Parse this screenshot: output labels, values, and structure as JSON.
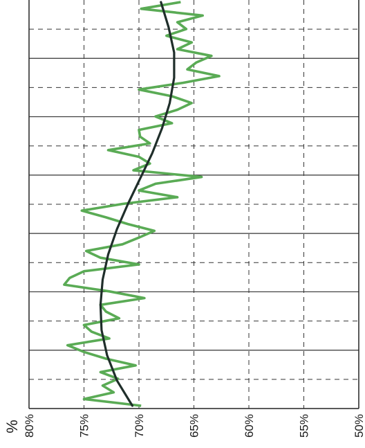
{
  "chart_data": {
    "type": "line",
    "orientation": "vertical-value-axis-bottom",
    "title": "",
    "value_axis": {
      "unit": "%",
      "range": [
        80,
        50
      ],
      "ticks": [
        80,
        75,
        70,
        65,
        60,
        55,
        50
      ],
      "tick_labels": [
        "80%",
        "75%",
        "70%",
        "65%",
        "60%",
        "55%",
        "50%"
      ],
      "reversed": true
    },
    "category_axis": {
      "labels": [],
      "count": 7
    },
    "grid": true,
    "colors": {
      "series": "#5aab55",
      "trend": "#1f2e2a",
      "grid": "#333333"
    },
    "series": [
      {
        "role": "data",
        "values": [
          69.8,
          75.0,
          72.3,
          73.3,
          71.9,
          73.5,
          70.3,
          73.0,
          75.0,
          76.5,
          72.7,
          74.3,
          75.0,
          71.8,
          73.0,
          73.5,
          69.5,
          72.7,
          76.8,
          76.3,
          75.0,
          70.0,
          73.5,
          74.8,
          71.5,
          70.0,
          68.6,
          71.0,
          73.0,
          75.2,
          71.5,
          66.5,
          70.0,
          68.5,
          64.3,
          70.5,
          69.0,
          70.0,
          72.8,
          69.0,
          69.9,
          70.0,
          67.0,
          68.5,
          66.5,
          65.2,
          67.0,
          70.0,
          66.0,
          62.7,
          65.6,
          64.8,
          63.4,
          66.5,
          65.2,
          67.5,
          65.7,
          66.5,
          64.2,
          69.8,
          66.2
        ]
      },
      {
        "role": "trend",
        "values": [
          70.6,
          72.0,
          72.9,
          73.4,
          73.5,
          73.3,
          72.8,
          72.0,
          71.0,
          69.9,
          68.8,
          67.9,
          67.2,
          66.8,
          66.8,
          67.3,
          68.0
        ]
      }
    ]
  }
}
